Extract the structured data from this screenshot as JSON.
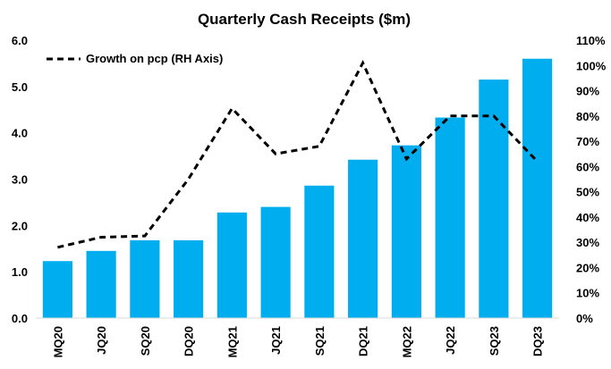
{
  "chart_data": {
    "type": "bar",
    "title": "Quarterly Cash Receipts ($m)",
    "categories": [
      "MQ20",
      "JQ20",
      "SQ20",
      "DQ20",
      "MQ21",
      "JQ21",
      "SQ21",
      "DQ21",
      "MQ22",
      "JQ22",
      "SQ23",
      "DQ23"
    ],
    "series": [
      {
        "type": "bar",
        "axis": "left",
        "color": "#00AEEF",
        "values": [
          1.23,
          1.45,
          1.68,
          1.68,
          2.28,
          2.4,
          2.86,
          3.42,
          3.73,
          4.33,
          5.15,
          5.6
        ]
      },
      {
        "name": "Growth on pcp (RH Axis)",
        "type": "line",
        "axis": "right",
        "style": "dashed",
        "color": "#000000",
        "values": [
          0.28,
          0.32,
          0.325,
          0.55,
          0.83,
          0.65,
          0.68,
          1.01,
          0.63,
          0.8,
          0.8,
          0.62
        ]
      }
    ],
    "ylim": [
      0,
      6
    ],
    "yticks": [
      "0.0",
      "1.0",
      "2.0",
      "3.0",
      "4.0",
      "5.0",
      "6.0"
    ],
    "y2lim": [
      0,
      1.1
    ],
    "y2ticks": [
      "0%",
      "10%",
      "20%",
      "30%",
      "40%",
      "50%",
      "60%",
      "70%",
      "80%",
      "90%",
      "100%",
      "110%"
    ],
    "legend_position": "top-left",
    "grid": false
  }
}
